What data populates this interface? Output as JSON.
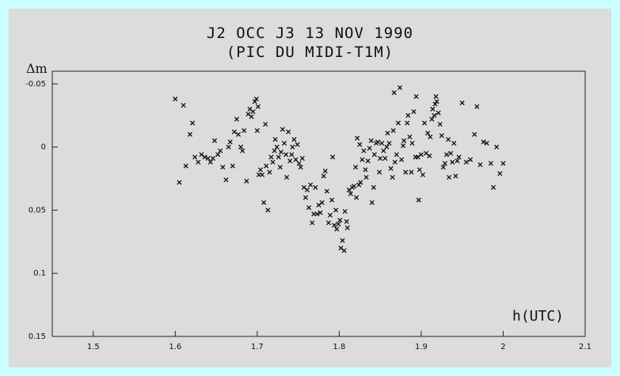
{
  "chart_data": {
    "type": "scatter",
    "title": "J2 OCC J3 13 NOV 1990",
    "subtitle": "(PIC DU MIDI-T1M)",
    "xlabel": "h(UTC)",
    "ylabel": "Δm",
    "xlim": [
      1.45,
      2.1
    ],
    "ylim": [
      -0.06,
      0.15
    ],
    "y_inverted": true,
    "grid": false,
    "marker": "x",
    "x_ticks": [
      1.5,
      1.6,
      1.7,
      1.8,
      1.9,
      2,
      2.1
    ],
    "x_tick_labels": [
      "1.5",
      "1.6",
      "1.7",
      "1.8",
      "1.9",
      "2",
      "2.1"
    ],
    "y_ticks": [
      -0.05,
      0,
      0.05,
      0.1,
      0.15
    ],
    "y_tick_labels": [
      "-0.05",
      "0",
      "0.05",
      "0.1",
      "0.15"
    ],
    "points": [
      [
        1.6,
        -0.038
      ],
      [
        1.605,
        0.028
      ],
      [
        1.61,
        -0.033
      ],
      [
        1.613,
        0.015
      ],
      [
        1.618,
        -0.01
      ],
      [
        1.621,
        -0.019
      ],
      [
        1.624,
        0.008
      ],
      [
        1.628,
        0.012
      ],
      [
        1.632,
        0.006
      ],
      [
        1.636,
        0.008
      ],
      [
        1.64,
        0.009
      ],
      [
        1.643,
        0.012
      ],
      [
        1.646,
        0.009
      ],
      [
        1.648,
        -0.005
      ],
      [
        1.652,
        0.006
      ],
      [
        1.655,
        0.003
      ],
      [
        1.658,
        0.016
      ],
      [
        1.662,
        0.026
      ],
      [
        1.665,
        0.0
      ],
      [
        1.667,
        -0.004
      ],
      [
        1.67,
        0.015
      ],
      [
        1.672,
        -0.012
      ],
      [
        1.675,
        -0.022
      ],
      [
        1.677,
        -0.01
      ],
      [
        1.68,
        0.0
      ],
      [
        1.682,
        0.003
      ],
      [
        1.684,
        -0.013
      ],
      [
        1.687,
        0.027
      ],
      [
        1.689,
        -0.026
      ],
      [
        1.691,
        -0.03
      ],
      [
        1.693,
        -0.024
      ],
      [
        1.695,
        -0.028
      ],
      [
        1.697,
        -0.036
      ],
      [
        1.699,
        -0.038
      ],
      [
        1.701,
        -0.032
      ],
      [
        1.7,
        -0.013
      ],
      [
        1.702,
        0.022
      ],
      [
        1.704,
        0.018
      ],
      [
        1.706,
        0.022
      ],
      [
        1.708,
        0.044
      ],
      [
        1.71,
        -0.018
      ],
      [
        1.711,
        0.015
      ],
      [
        1.713,
        0.05
      ],
      [
        1.715,
        0.02
      ],
      [
        1.717,
        0.008
      ],
      [
        1.719,
        0.012
      ],
      [
        1.721,
        0.003
      ],
      [
        1.722,
        -0.006
      ],
      [
        1.724,
        0.0
      ],
      [
        1.726,
        0.008
      ],
      [
        1.728,
        0.016
      ],
      [
        1.729,
        0.004
      ],
      [
        1.731,
        -0.014
      ],
      [
        1.733,
        -0.003
      ],
      [
        1.735,
        0.006
      ],
      [
        1.736,
        0.024
      ],
      [
        1.738,
        -0.012
      ],
      [
        1.74,
        0.011
      ],
      [
        1.742,
        0.006
      ],
      [
        1.743,
        0.0
      ],
      [
        1.745,
        -0.006
      ],
      [
        1.747,
        0.01
      ],
      [
        1.749,
        -0.002
      ],
      [
        1.751,
        0.013
      ],
      [
        1.753,
        0.016
      ],
      [
        1.755,
        0.009
      ],
      [
        1.757,
        0.032
      ],
      [
        1.759,
        0.04
      ],
      [
        1.761,
        0.034
      ],
      [
        1.763,
        0.048
      ],
      [
        1.765,
        0.03
      ],
      [
        1.767,
        0.06
      ],
      [
        1.769,
        0.053
      ],
      [
        1.771,
        0.032
      ],
      [
        1.773,
        0.053
      ],
      [
        1.775,
        0.046
      ],
      [
        1.777,
        0.052
      ],
      [
        1.779,
        0.044
      ],
      [
        1.781,
        0.023
      ],
      [
        1.783,
        0.019
      ],
      [
        1.785,
        0.035
      ],
      [
        1.787,
        0.06
      ],
      [
        1.789,
        0.054
      ],
      [
        1.791,
        0.042
      ],
      [
        1.792,
        0.008
      ],
      [
        1.794,
        0.062
      ],
      [
        1.796,
        0.05
      ],
      [
        1.797,
        0.065
      ],
      [
        1.799,
        0.061
      ],
      [
        1.801,
        0.058
      ],
      [
        1.802,
        0.08
      ],
      [
        1.804,
        0.074
      ],
      [
        1.806,
        0.082
      ],
      [
        1.807,
        0.051
      ],
      [
        1.809,
        0.059
      ],
      [
        1.81,
        0.064
      ],
      [
        1.812,
        0.034
      ],
      [
        1.814,
        0.037
      ],
      [
        1.816,
        0.032
      ],
      [
        1.818,
        0.031
      ],
      [
        1.82,
        0.016
      ],
      [
        1.821,
        0.04
      ],
      [
        1.822,
        -0.007
      ],
      [
        1.824,
        0.03
      ],
      [
        1.825,
        -0.002
      ],
      [
        1.826,
        0.028
      ],
      [
        1.828,
        0.01
      ],
      [
        1.83,
        0.003
      ],
      [
        1.832,
        0.018
      ],
      [
        1.833,
        0.024
      ],
      [
        1.835,
        0.011
      ],
      [
        1.837,
        0.001
      ],
      [
        1.839,
        -0.005
      ],
      [
        1.84,
        0.044
      ],
      [
        1.842,
        0.032
      ],
      [
        1.843,
        0.006
      ],
      [
        1.845,
        -0.003
      ],
      [
        1.847,
        -0.004
      ],
      [
        1.849,
        0.02
      ],
      [
        1.85,
        0.009
      ],
      [
        1.852,
        -0.003
      ],
      [
        1.854,
        0.003
      ],
      [
        1.856,
        0.009
      ],
      [
        1.858,
        0.0
      ],
      [
        1.859,
        -0.011
      ],
      [
        1.861,
        -0.003
      ],
      [
        1.863,
        0.017
      ],
      [
        1.865,
        0.024
      ],
      [
        1.866,
        -0.013
      ],
      [
        1.867,
        -0.043
      ],
      [
        1.868,
        0.012
      ],
      [
        1.87,
        0.006
      ],
      [
        1.872,
        -0.019
      ],
      [
        1.874,
        -0.047
      ],
      [
        1.876,
        0.01
      ],
      [
        1.878,
        -0.001
      ],
      [
        1.879,
        -0.005
      ],
      [
        1.881,
        0.02
      ],
      [
        1.883,
        -0.019
      ],
      [
        1.884,
        -0.025
      ],
      [
        1.886,
        -0.008
      ],
      [
        1.888,
        0.02
      ],
      [
        1.889,
        -0.003
      ],
      [
        1.891,
        -0.028
      ],
      [
        1.893,
        0.008
      ],
      [
        1.894,
        -0.04
      ],
      [
        1.896,
        0.008
      ],
      [
        1.897,
        0.042
      ],
      [
        1.898,
        0.018
      ],
      [
        1.9,
        0.006
      ],
      [
        1.902,
        0.022
      ],
      [
        1.904,
        -0.019
      ],
      [
        1.906,
        0.005
      ],
      [
        1.908,
        -0.011
      ],
      [
        1.91,
        0.007
      ],
      [
        1.911,
        -0.008
      ],
      [
        1.913,
        -0.022
      ],
      [
        1.914,
        -0.03
      ],
      [
        1.916,
        -0.025
      ],
      [
        1.917,
        -0.034
      ],
      [
        1.918,
        -0.04
      ],
      [
        1.919,
        -0.036
      ],
      [
        1.921,
        -0.027
      ],
      [
        1.923,
        -0.018
      ],
      [
        1.925,
        -0.009
      ],
      [
        1.927,
        0.016
      ],
      [
        1.929,
        0.013
      ],
      [
        1.931,
        0.006
      ],
      [
        1.933,
        -0.006
      ],
      [
        1.934,
        0.024
      ],
      [
        1.936,
        0.005
      ],
      [
        1.938,
        0.012
      ],
      [
        1.94,
        -0.003
      ],
      [
        1.942,
        0.023
      ],
      [
        1.944,
        0.011
      ],
      [
        1.946,
        0.008
      ],
      [
        1.95,
        -0.035
      ],
      [
        1.955,
        0.012
      ],
      [
        1.96,
        0.01
      ],
      [
        1.965,
        -0.01
      ],
      [
        1.968,
        -0.032
      ],
      [
        1.972,
        0.014
      ],
      [
        1.976,
        -0.004
      ],
      [
        1.98,
        -0.003
      ],
      [
        1.985,
        0.013
      ],
      [
        1.988,
        0.032
      ],
      [
        1.992,
        0.0
      ],
      [
        1.996,
        0.021
      ],
      [
        2.0,
        0.013
      ]
    ]
  }
}
